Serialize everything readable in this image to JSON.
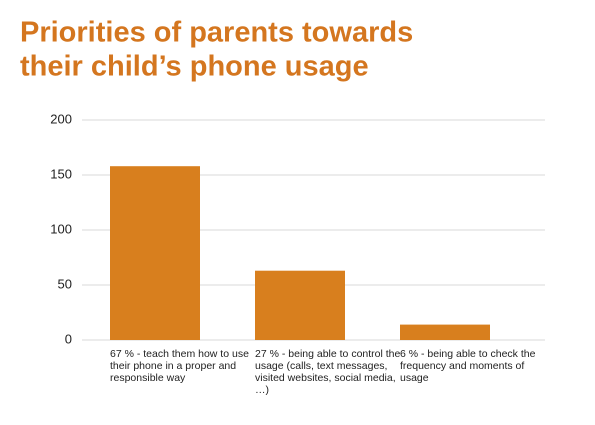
{
  "chart_data": {
    "type": "bar",
    "title": [
      "Priorities of parents towards",
      "their child’s phone usage"
    ],
    "categories": [
      "67 % - teach them how to use their phone in a proper and responsible way",
      "27 % - being able to control the usage (calls, text messages, visited websites, social media, …)",
      "6 % - being able to check the frequency and moments of usage"
    ],
    "values": [
      158,
      63,
      14
    ],
    "color": "#d87f1e",
    "ylim": [
      0,
      200
    ],
    "yticks": [
      0,
      50,
      100,
      150,
      200
    ],
    "grid": true
  }
}
